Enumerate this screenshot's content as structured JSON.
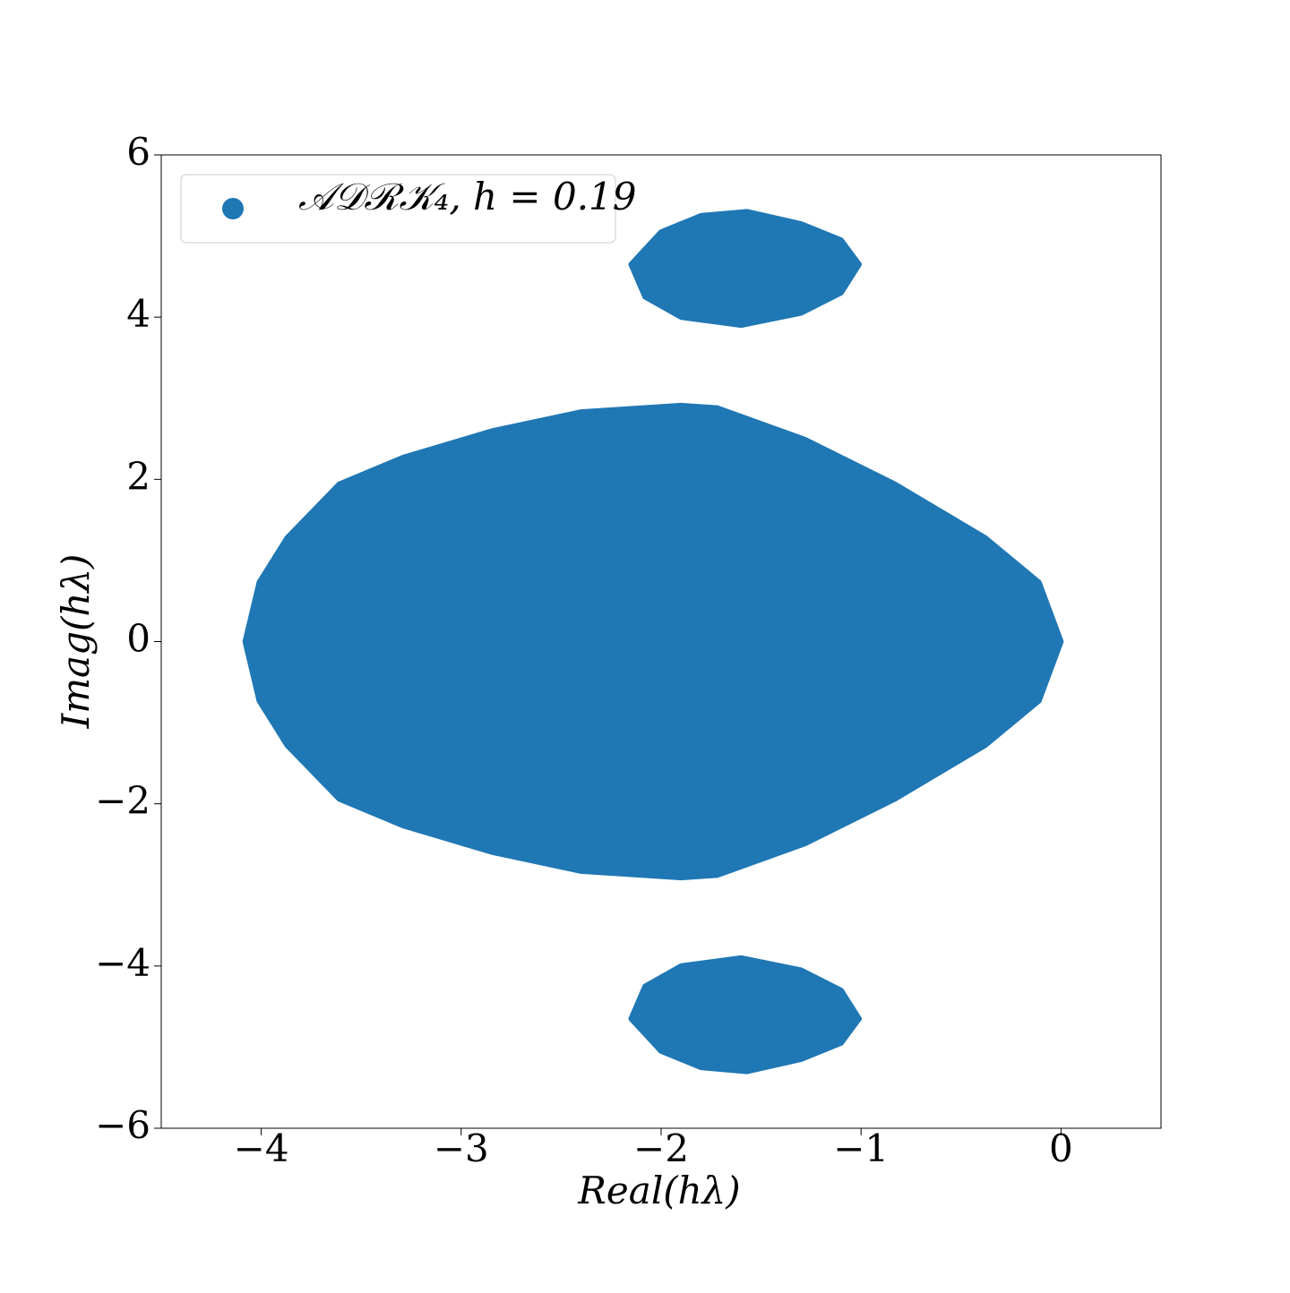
{
  "chart_data": {
    "type": "scatter",
    "xlabel": "Real(hλ)",
    "ylabel": "Imag(hλ)",
    "x": [
      -4.08,
      -4.01,
      -3.87,
      -3.61,
      -3.29,
      -2.84,
      -2.4,
      -1.9,
      -1.72,
      -1.28,
      -0.83,
      -0.38,
      -0.11,
      0,
      -0.11,
      -0.38,
      -0.83,
      -1.28,
      -1.72,
      -1.9,
      -2.4,
      -2.84,
      -3.29,
      -3.61,
      -3.87,
      -4.01,
      null,
      -2.15,
      -2.0,
      -1.8,
      -1.57,
      -1.3,
      -1.1,
      -1.01,
      -1.1,
      -1.3,
      -1.6,
      -1.9,
      -2.08,
      null,
      -2.15,
      -2.0,
      -1.8,
      -1.57,
      -1.3,
      -1.1,
      -1.01,
      -1.1,
      -1.3,
      -1.6,
      -1.9,
      -2.08
    ],
    "series": [
      {
        "name": "𝒜𝒟ℛ𝒦₄, h = 0.19",
        "color": "#1f77b4",
        "values": [
          0,
          0.73,
          1.28,
          1.94,
          2.27,
          2.6,
          2.83,
          2.91,
          2.88,
          2.49,
          1.94,
          1.28,
          0.73,
          0,
          -0.73,
          -1.28,
          -1.94,
          -2.49,
          -2.88,
          -2.91,
          -2.83,
          -2.6,
          -2.27,
          -1.94,
          -1.28,
          -0.73,
          null,
          4.65,
          5.05,
          5.25,
          5.3,
          5.15,
          4.95,
          4.65,
          4.3,
          4.05,
          3.9,
          4.0,
          4.25,
          null,
          -4.65,
          -5.05,
          -5.25,
          -5.3,
          -5.15,
          -4.95,
          -4.65,
          -4.3,
          -4.05,
          -3.9,
          -4.0,
          -4.25
        ]
      }
    ],
    "xlim": [
      -4.5,
      0.5
    ],
    "ylim": [
      -6,
      6
    ],
    "xticks": [
      {
        "value": -4,
        "label": "−4"
      },
      {
        "value": -3,
        "label": "−3"
      },
      {
        "value": -2,
        "label": "−2"
      },
      {
        "value": -1,
        "label": "−1"
      },
      0
    ],
    "yticks": [
      {
        "value": -6,
        "label": "−6"
      },
      {
        "value": -4,
        "label": "−4"
      },
      {
        "value": -2,
        "label": "−2"
      },
      0,
      2,
      4,
      6
    ],
    "legend": "upper left"
  }
}
